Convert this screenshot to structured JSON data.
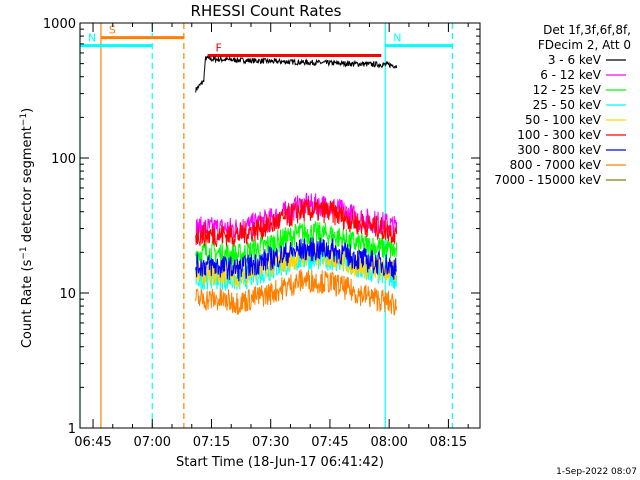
{
  "chart_data": {
    "type": "line",
    "title": "RHESSI Count Rates",
    "xlabel": "Start Time (18-Jun-17 06:41:42)",
    "ylabel": "Count Rate (s⁻¹ detector segment⁻¹)",
    "ylabel_main": "Count Rate (s",
    "ylabel_mid": " detector segment",
    "ylabel_end": ")",
    "ylabel_sup": "−1",
    "yscale": "log",
    "ylim": [
      1,
      1000
    ],
    "xlim": [
      "06:41:42",
      "08:23:00"
    ],
    "xlim_minutes": [
      401.7,
      503.0
    ],
    "x_ticks": [
      {
        "label": "06:45",
        "minute": 405
      },
      {
        "label": "07:00",
        "minute": 420
      },
      {
        "label": "07:15",
        "minute": 435
      },
      {
        "label": "07:30",
        "minute": 450
      },
      {
        "label": "07:45",
        "minute": 465
      },
      {
        "label": "08:00",
        "minute": 480
      },
      {
        "label": "08:15",
        "minute": 495
      }
    ],
    "y_ticks": [
      {
        "label": "1",
        "value": 1
      },
      {
        "label": "10",
        "value": 10
      },
      {
        "label": "100",
        "value": 100
      },
      {
        "label": "1000",
        "value": 1000
      }
    ],
    "legend_header": [
      "Det 1f,3f,6f,8f,",
      "FDecim 2, Att 0"
    ],
    "legend_position": "right",
    "series": [
      {
        "name": "3 - 6 keV",
        "color": "#000000",
        "x": [
          "07:11",
          "07:13",
          "07:13:30",
          "07:15",
          "07:30",
          "07:45",
          "07:55",
          "08:00",
          "08:02"
        ],
        "values": [
          320,
          370,
          550,
          540,
          520,
          505,
          495,
          490,
          480
        ]
      },
      {
        "name": "6 - 12 keV",
        "color": "#ff00ff",
        "x": [
          "07:11",
          "07:15",
          "07:22",
          "07:30",
          "07:38",
          "07:45",
          "07:52",
          "08:00",
          "08:02"
        ],
        "values": [
          30,
          30,
          30,
          35,
          45,
          44,
          36,
          32,
          30
        ]
      },
      {
        "name": "12 - 25 keV",
        "color": "#00ff00",
        "x": [
          "07:11",
          "07:15",
          "07:22",
          "07:30",
          "07:38",
          "07:45",
          "07:52",
          "08:00",
          "08:02"
        ],
        "values": [
          20,
          20,
          19,
          23,
          28,
          27,
          23,
          21,
          20
        ]
      },
      {
        "name": "25 - 50 keV",
        "color": "#00ffff",
        "x": [
          "07:11",
          "07:15",
          "07:22",
          "07:30",
          "07:38",
          "07:45",
          "07:52",
          "08:00",
          "08:02"
        ],
        "values": [
          13,
          13,
          12.5,
          15,
          18,
          18,
          15,
          13.5,
          13
        ]
      },
      {
        "name": "50 - 100 keV",
        "color": "#ffd700",
        "x": [
          "07:11",
          "07:15",
          "07:22",
          "07:30",
          "07:38",
          "07:45",
          "07:52",
          "08:00",
          "08:02"
        ],
        "values": [
          14,
          14,
          13.5,
          16,
          19,
          19,
          16,
          14.5,
          14
        ]
      },
      {
        "name": "100 - 300 keV",
        "color": "#ff0000",
        "x": [
          "07:11",
          "07:15",
          "07:22",
          "07:30",
          "07:38",
          "07:45",
          "07:52",
          "08:00",
          "08:02"
        ],
        "values": [
          27,
          27,
          27,
          32,
          41,
          40,
          33,
          29,
          27
        ]
      },
      {
        "name": "300 - 800 keV",
        "color": "#0000ff",
        "x": [
          "07:11",
          "07:15",
          "07:22",
          "07:30",
          "07:38",
          "07:45",
          "07:52",
          "08:00",
          "08:02"
        ],
        "values": [
          16,
          16,
          15,
          18,
          21,
          21,
          18,
          16,
          15
        ]
      },
      {
        "name": "800 - 7000 keV",
        "color": "#ff8000",
        "x": [
          "07:11",
          "07:15",
          "07:22",
          "07:30",
          "07:38",
          "07:45",
          "07:52",
          "08:00",
          "08:02"
        ],
        "values": [
          9,
          9,
          8.5,
          10,
          12.5,
          12,
          10,
          8.5,
          8
        ]
      },
      {
        "name": "7000 - 15000 keV",
        "color": "#808000",
        "x": [],
        "values": []
      }
    ],
    "attenuator_flags": [
      {
        "label": "S",
        "color": "#ff8000",
        "start": "06:47",
        "end": "07:08",
        "level": 780
      },
      {
        "label": "N",
        "color": "#00ffff",
        "start": "06:41:42",
        "end": "07:00",
        "level": 680
      },
      {
        "label": "N",
        "color": "#00ffff",
        "start": "07:59",
        "end": "08:16",
        "level": 680
      },
      {
        "label": "F",
        "color": "#ff0000",
        "start": "07:14",
        "end": "07:58",
        "level": 575
      }
    ],
    "vertical_markers": [
      {
        "time": "06:41:42",
        "color": "#00ffff",
        "style": "solid"
      },
      {
        "time": "06:47",
        "color": "#ff8000",
        "style": "solid"
      },
      {
        "time": "07:00",
        "color": "#00ffff",
        "style": "dashed"
      },
      {
        "time": "07:08",
        "color": "#ff8000",
        "style": "dashed"
      },
      {
        "time": "07:59",
        "color": "#00ffff",
        "style": "solid"
      },
      {
        "time": "08:16",
        "color": "#00ffff",
        "style": "dashed"
      }
    ]
  },
  "footer": {
    "timestamp": "1-Sep-2022 08:07"
  }
}
